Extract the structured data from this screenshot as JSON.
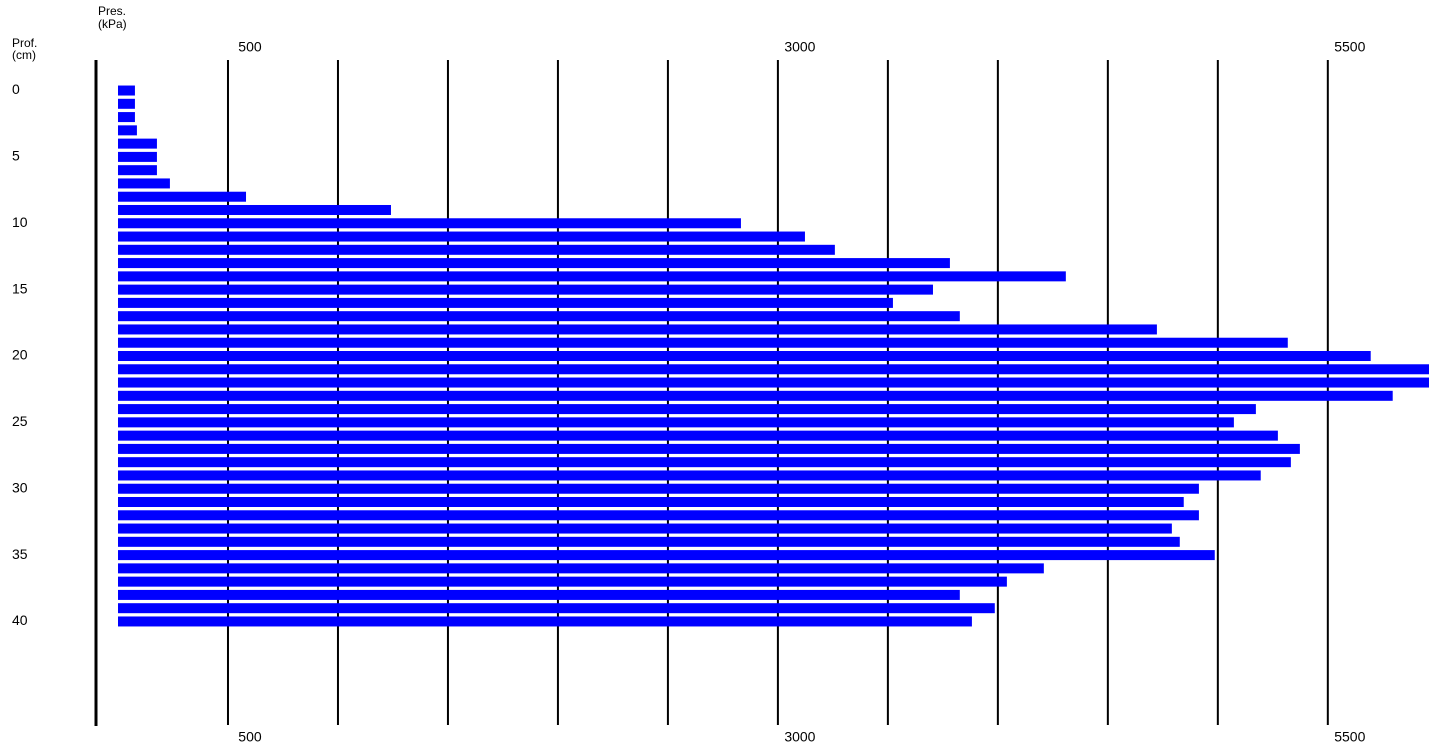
{
  "chart_data": {
    "type": "hbar",
    "x_label": [
      "Pres.",
      "(kPa)"
    ],
    "y_label": [
      "Prof.",
      "(cm)"
    ],
    "color": "#0000ff",
    "y": [
      0,
      1,
      2,
      3,
      4,
      5,
      6,
      7,
      8,
      9,
      10,
      11,
      12,
      13,
      14,
      15,
      16,
      17,
      18,
      19,
      20,
      21,
      22,
      23,
      24,
      25,
      26,
      27,
      28,
      29,
      30,
      31,
      32,
      33,
      34,
      35,
      36,
      37,
      38,
      39,
      40
    ],
    "values": [
      77,
      77,
      77,
      86,
      177,
      177,
      177,
      236,
      582,
      1241,
      2832,
      3123,
      3259,
      3782,
      4309,
      3705,
      3523,
      3827,
      4723,
      5318,
      5695,
      5960,
      5960,
      5795,
      5173,
      5073,
      5273,
      5373,
      5332,
      5195,
      4914,
      4845,
      4914,
      4791,
      4827,
      4986,
      4209,
      4041,
      3827,
      3986,
      3882
    ],
    "xlim": [
      0,
      5960
    ],
    "ylim": [
      -2.3,
      47.8
    ],
    "xticks": [
      500,
      {
        "value": 1000,
        "label": null
      },
      {
        "value": 1500,
        "label": null
      },
      {
        "value": 2000,
        "label": null
      },
      {
        "value": 2500,
        "label": null
      },
      3000,
      {
        "value": 3500,
        "label": null
      },
      {
        "value": 4000,
        "label": null
      },
      {
        "value": 4500,
        "label": null
      },
      {
        "value": 5000,
        "label": null
      },
      5500
    ],
    "yticks": [
      0,
      5,
      10,
      15,
      20,
      25,
      30,
      35,
      40
    ],
    "grid": true
  }
}
